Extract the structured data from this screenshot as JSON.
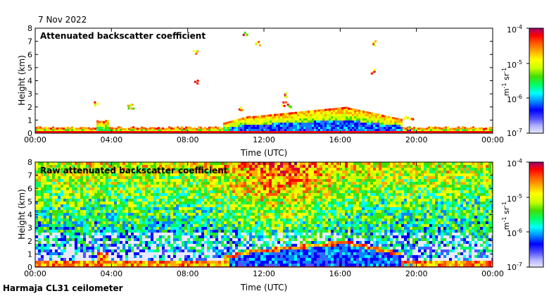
{
  "date": "7 Nov 2022",
  "footer": "Harmaja CL31 ceilometer",
  "colors": {
    "scale": [
      "#e8e8ff",
      "#b0b0ff",
      "#5050ff",
      "#0000ff",
      "#0088ff",
      "#00ffff",
      "#00ff66",
      "#44dd00",
      "#ccff00",
      "#ffff00",
      "#ffaa00",
      "#ff5500",
      "#ff0000",
      "#cc0044",
      "#880066"
    ]
  },
  "chart_data": [
    {
      "type": "heatmap",
      "title": "Attenuated backscatter coefficient",
      "xlabel": "Time (UTC)",
      "ylabel": "Height (km)",
      "x_ticks": [
        "00:00",
        "04:00",
        "08:00",
        "12:00",
        "16:00",
        "20:00",
        "00:00"
      ],
      "y_ticks": [
        "0",
        "1",
        "2",
        "3",
        "4",
        "5",
        "6",
        "7",
        "8"
      ],
      "ylim": [
        0,
        8
      ],
      "colorbar": {
        "scale": "log",
        "range": [
          1e-07,
          0.0001
        ],
        "ticks": [
          {
            "base": "10",
            "exp": "-4"
          },
          {
            "base": "10",
            "exp": "-5"
          },
          {
            "base": "10",
            "exp": "-6"
          },
          {
            "base": "10",
            "exp": "-7"
          }
        ],
        "unit": {
          "m": "m",
          "m_exp": "-1",
          "sr": "sr",
          "sr_exp": "-1"
        }
      }
    },
    {
      "type": "heatmap",
      "title": "Raw attenuated backscatter coefficient",
      "xlabel": "Time (UTC)",
      "ylabel": "Height (km)",
      "x_ticks": [
        "00:00",
        "04:00",
        "08:00",
        "12:00",
        "16:00",
        "20:00",
        "00:00"
      ],
      "y_ticks": [
        "0",
        "1",
        "2",
        "3",
        "4",
        "5",
        "6",
        "7",
        "8"
      ],
      "ylim": [
        0,
        8
      ],
      "colorbar": {
        "scale": "log",
        "range": [
          1e-07,
          0.0001
        ],
        "ticks": [
          {
            "base": "10",
            "exp": "-4"
          },
          {
            "base": "10",
            "exp": "-5"
          },
          {
            "base": "10",
            "exp": "-6"
          },
          {
            "base": "10",
            "exp": "-7"
          }
        ],
        "unit": {
          "m": "m",
          "m_exp": "-1",
          "sr": "sr",
          "sr_exp": "-1"
        }
      }
    }
  ]
}
